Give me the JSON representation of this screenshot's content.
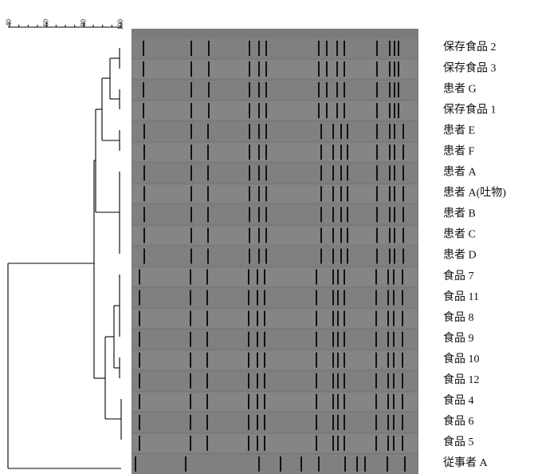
{
  "scale": {
    "ticks": [
      40,
      60,
      80,
      100
    ]
  },
  "lanes": [
    "保存食品 2",
    "保存食品 3",
    "患者 G",
    "保存食品 1",
    "患者 E",
    "患者 F",
    "患者 A",
    "患者 A(吐物)",
    "患者 B",
    "患者 C",
    "患者 D",
    "食品 7",
    "食品 11",
    "食品 8",
    "食品 9",
    "食品 10",
    "食品 12",
    "食品 4",
    "食品 6",
    "食品 5",
    "従事者 A"
  ]
}
